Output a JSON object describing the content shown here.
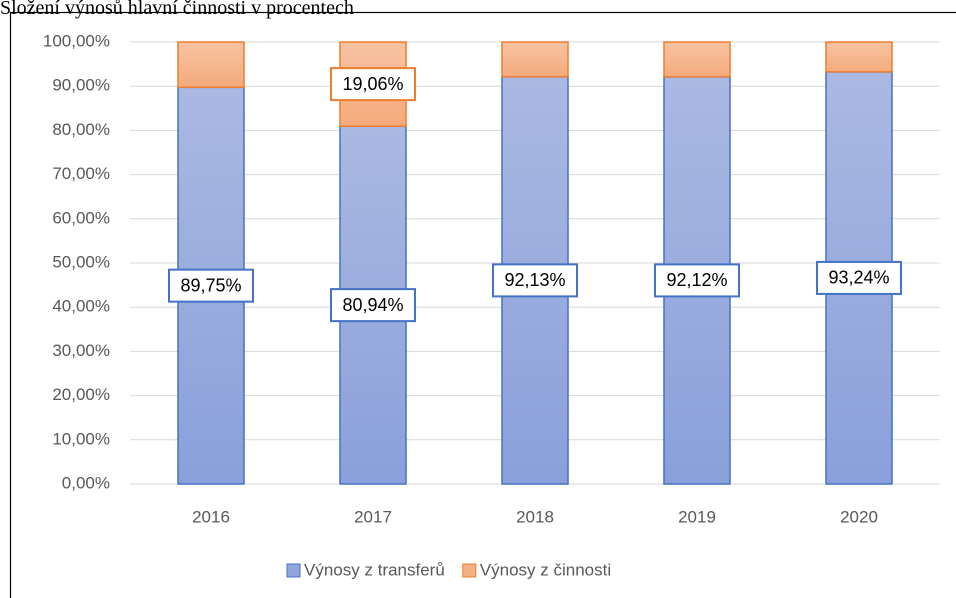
{
  "chart_data": {
    "type": "stacked_bar",
    "title": "Složení výnosů hlavní činnosti v procentech",
    "categories": [
      "2016",
      "2017",
      "2018",
      "2019",
      "2020"
    ],
    "series": [
      {
        "name": "Výnosy z transferů",
        "color": "#8fa5dc",
        "values": [
          89.75,
          80.94,
          92.13,
          92.12,
          93.24
        ],
        "value_labels": [
          "89,75%",
          "80,94%",
          "92,13%",
          "92,12%",
          "93,24%"
        ]
      },
      {
        "name": "Výnosy z činnosti",
        "color": "#f4b183",
        "values": [
          10.25,
          19.06,
          7.87,
          7.88,
          6.76
        ],
        "value_labels": [
          null,
          "19,06%",
          null,
          null,
          null
        ]
      }
    ],
    "ylim": [
      0,
      100
    ],
    "yticks": [
      {
        "value": 0,
        "label": "0,00%"
      },
      {
        "value": 10,
        "label": "10,00%"
      },
      {
        "value": 20,
        "label": "20,00%"
      },
      {
        "value": 30,
        "label": "30,00%"
      },
      {
        "value": 40,
        "label": "40,00%"
      },
      {
        "value": 50,
        "label": "50,00%"
      },
      {
        "value": 60,
        "label": "60,00%"
      },
      {
        "value": 70,
        "label": "70,00%"
      },
      {
        "value": 80,
        "label": "80,00%"
      },
      {
        "value": 90,
        "label": "90,00%"
      },
      {
        "value": 100,
        "label": "100,00%"
      }
    ],
    "grid": true,
    "legend": "bottom"
  }
}
